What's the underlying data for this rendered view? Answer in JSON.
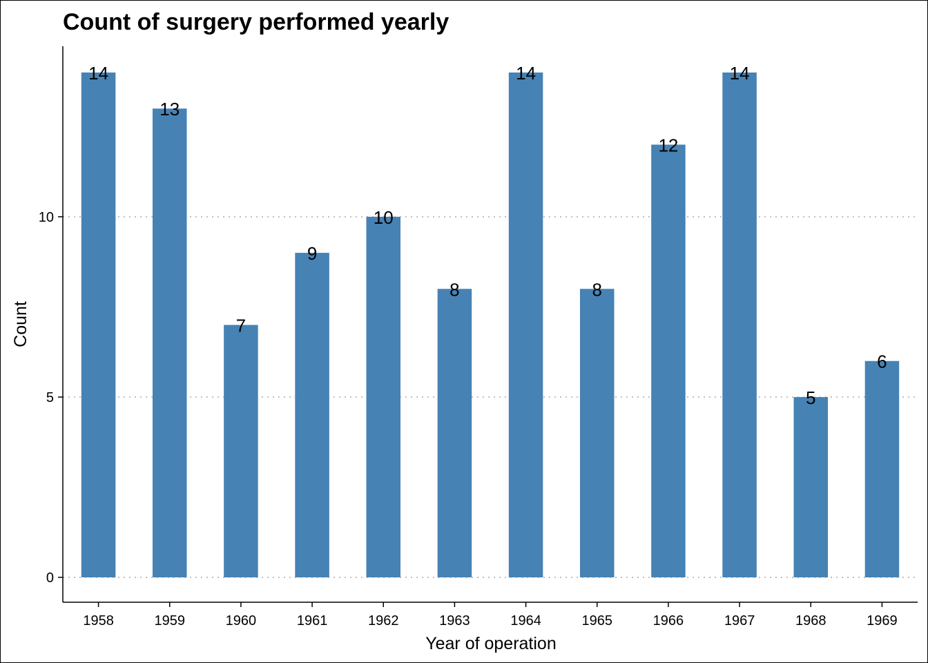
{
  "chart_data": {
    "type": "bar",
    "title": "Count of surgery performed yearly",
    "xlabel": "Year of operation",
    "ylabel": "Count",
    "categories": [
      "1958",
      "1959",
      "1960",
      "1961",
      "1962",
      "1963",
      "1964",
      "1965",
      "1966",
      "1967",
      "1968",
      "1969"
    ],
    "values": [
      14,
      13,
      7,
      9,
      10,
      8,
      14,
      8,
      12,
      14,
      5,
      6
    ],
    "ylim": [
      0,
      14
    ],
    "yticks": [
      0,
      5,
      10
    ],
    "grid": "horizontal dotted",
    "bar_color": "#4682b4",
    "grid_color": "#bebebe",
    "data_labels": true
  }
}
